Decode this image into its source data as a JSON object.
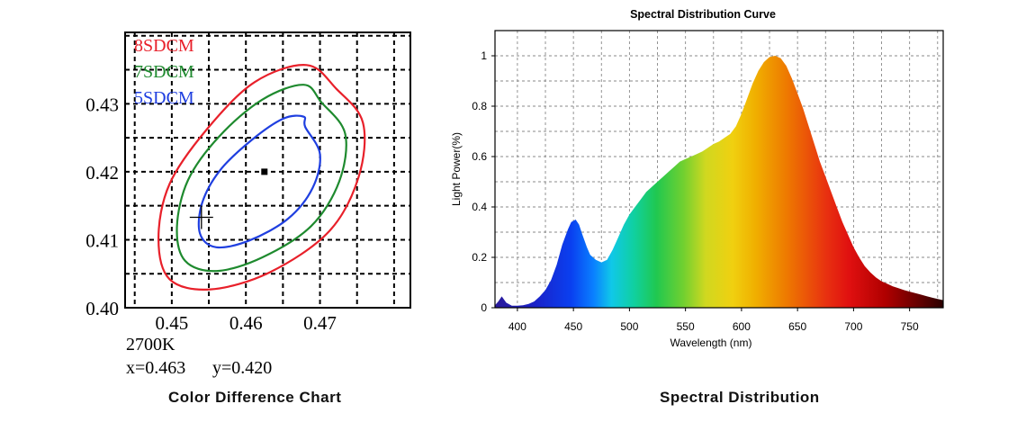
{
  "chart_data": [
    {
      "type": "scatter",
      "title": "",
      "caption": "Color Difference Chart",
      "xlabel": "",
      "ylabel": "",
      "xlim": [
        0.4437,
        0.4822
      ],
      "ylim": [
        0.4,
        0.4405
      ],
      "x_ticks": [
        "0.45",
        "0.46",
        "0.47"
      ],
      "y_ticks": [
        "0.40",
        "0.41",
        "0.42",
        "0.43"
      ],
      "x_tick_values": [
        0.45,
        0.46,
        0.47
      ],
      "y_tick_values": [
        0.4,
        0.41,
        0.42,
        0.43
      ],
      "grid": true,
      "legend": "top-left",
      "series": [
        {
          "name": "8SDCM",
          "color": "#e8202a",
          "center": [
            0.463,
            0.42
          ],
          "contour": [
            [
              0.4722,
              0.4322
            ],
            [
              0.4758,
              0.4272
            ],
            [
              0.4752,
              0.4192
            ],
            [
              0.4712,
              0.4112
            ],
            [
              0.4632,
              0.4052
            ],
            [
              0.4552,
              0.4027
            ],
            [
              0.4497,
              0.4042
            ],
            [
              0.4482,
              0.4102
            ],
            [
              0.4497,
              0.4182
            ],
            [
              0.4547,
              0.4262
            ],
            [
              0.4612,
              0.4332
            ],
            [
              0.4682,
              0.4357
            ],
            [
              0.4722,
              0.4322
            ]
          ]
        },
        {
          "name": "7SDCM",
          "color": "#1e8a2e",
          "center": [
            0.463,
            0.42
          ],
          "contour": [
            [
              0.4702,
              0.4302
            ],
            [
              0.4734,
              0.4256
            ],
            [
              0.4726,
              0.4186
            ],
            [
              0.4688,
              0.412
            ],
            [
              0.4622,
              0.4074
            ],
            [
              0.456,
              0.4054
            ],
            [
              0.4518,
              0.4069
            ],
            [
              0.4507,
              0.4119
            ],
            [
              0.4522,
              0.4188
            ],
            [
              0.4564,
              0.4252
            ],
            [
              0.4622,
              0.4306
            ],
            [
              0.4678,
              0.4328
            ],
            [
              0.4702,
              0.4302
            ]
          ]
        },
        {
          "name": "5SDCM",
          "color": "#1f3fe0",
          "center": [
            0.463,
            0.42
          ],
          "contour": [
            [
              0.468,
              0.4266
            ],
            [
              0.47,
              0.4226
            ],
            [
              0.469,
              0.4176
            ],
            [
              0.4657,
              0.4131
            ],
            [
              0.4605,
              0.4099
            ],
            [
              0.456,
              0.4089
            ],
            [
              0.4538,
              0.4109
            ],
            [
              0.4541,
              0.4154
            ],
            [
              0.4565,
              0.4202
            ],
            [
              0.4607,
              0.4246
            ],
            [
              0.465,
              0.4278
            ],
            [
              0.4678,
              0.4281
            ],
            [
              0.468,
              0.4266
            ]
          ]
        }
      ],
      "points": [
        {
          "name": "center",
          "x": 0.4625,
          "y": 0.42,
          "marker": "square"
        },
        {
          "name": "measured",
          "x": 0.454,
          "y": 0.4133,
          "marker": "plus"
        }
      ],
      "annotations": {
        "cct": "2700K",
        "x_label": "x=0.463",
        "y_label": "y=0.420"
      }
    },
    {
      "type": "area",
      "title": "Spectral Distribution Curve",
      "caption": "Spectral Distribution",
      "xlabel": "Wavelength  (nm)",
      "ylabel": "Light Power(%)",
      "xlim": [
        380,
        780
      ],
      "ylim": [
        0,
        1.1
      ],
      "x_ticks": [
        400,
        450,
        500,
        550,
        600,
        650,
        700,
        750
      ],
      "y_ticks": [
        0,
        0.2,
        0.4,
        0.6,
        0.8,
        1
      ],
      "grid": true,
      "legend": "none",
      "fill": "visible-spectrum gradient",
      "series": [
        {
          "x": [
            380,
            383,
            386,
            390,
            395,
            400,
            405,
            410,
            415,
            420,
            425,
            430,
            435,
            440,
            445,
            448,
            452,
            455,
            458,
            462,
            465,
            470,
            475,
            480,
            485,
            490,
            495,
            500,
            505,
            510,
            515,
            520,
            525,
            530,
            535,
            540,
            545,
            550,
            555,
            560,
            565,
            570,
            575,
            580,
            585,
            590,
            595,
            600,
            605,
            610,
            615,
            620,
            625,
            630,
            635,
            640,
            645,
            650,
            655,
            660,
            665,
            670,
            675,
            680,
            685,
            690,
            695,
            700,
            705,
            710,
            715,
            720,
            725,
            730,
            735,
            740,
            745,
            750,
            755,
            760,
            765,
            770,
            775,
            780
          ],
          "values": [
            0.01,
            0.025,
            0.045,
            0.02,
            0.008,
            0.008,
            0.01,
            0.015,
            0.025,
            0.045,
            0.07,
            0.11,
            0.17,
            0.25,
            0.31,
            0.34,
            0.35,
            0.33,
            0.29,
            0.24,
            0.21,
            0.19,
            0.18,
            0.19,
            0.23,
            0.28,
            0.33,
            0.37,
            0.4,
            0.43,
            0.46,
            0.48,
            0.5,
            0.52,
            0.54,
            0.56,
            0.58,
            0.59,
            0.6,
            0.61,
            0.62,
            0.635,
            0.65,
            0.66,
            0.675,
            0.69,
            0.72,
            0.77,
            0.83,
            0.89,
            0.94,
            0.975,
            0.995,
            1.0,
            0.99,
            0.96,
            0.91,
            0.85,
            0.79,
            0.72,
            0.65,
            0.58,
            0.52,
            0.46,
            0.4,
            0.34,
            0.29,
            0.24,
            0.2,
            0.165,
            0.14,
            0.12,
            0.105,
            0.095,
            0.085,
            0.078,
            0.07,
            0.064,
            0.058,
            0.052,
            0.046,
            0.04,
            0.035,
            0.03
          ]
        }
      ]
    }
  ]
}
